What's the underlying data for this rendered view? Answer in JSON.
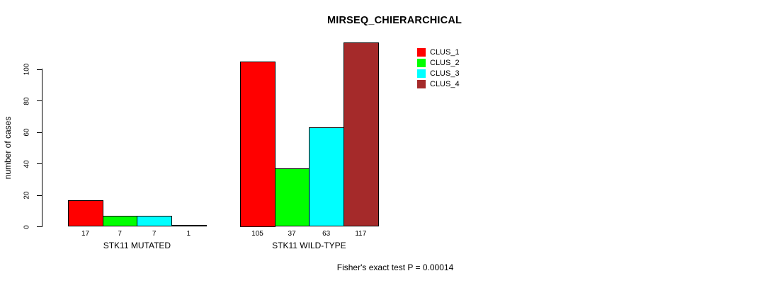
{
  "chart_data": {
    "type": "bar",
    "title": "MIRSEQ_CHIERARCHICAL",
    "ylabel": "number of cases",
    "xlabel": "",
    "caption": "Fisher's exact test P = 0.00014",
    "categories": [
      "STK11 MUTATED",
      "STK11 WILD-TYPE"
    ],
    "series": [
      {
        "name": "CLUS_1",
        "color": "#FF0000",
        "values": [
          17,
          105
        ]
      },
      {
        "name": "CLUS_2",
        "color": "#00FF00",
        "values": [
          7,
          37
        ]
      },
      {
        "name": "CLUS_3",
        "color": "#00FFFF",
        "values": [
          7,
          63
        ]
      },
      {
        "name": "CLUS_4",
        "color": "#A52A2A",
        "values": [
          1,
          117
        ]
      }
    ],
    "yticks": [
      0,
      20,
      40,
      60,
      80,
      100
    ],
    "ylim": [
      0,
      117
    ],
    "grid": false,
    "legend_position": "top-right",
    "bar_border_color": "#000000",
    "background_color": "#FFFFFF",
    "text_color": "#000000"
  }
}
